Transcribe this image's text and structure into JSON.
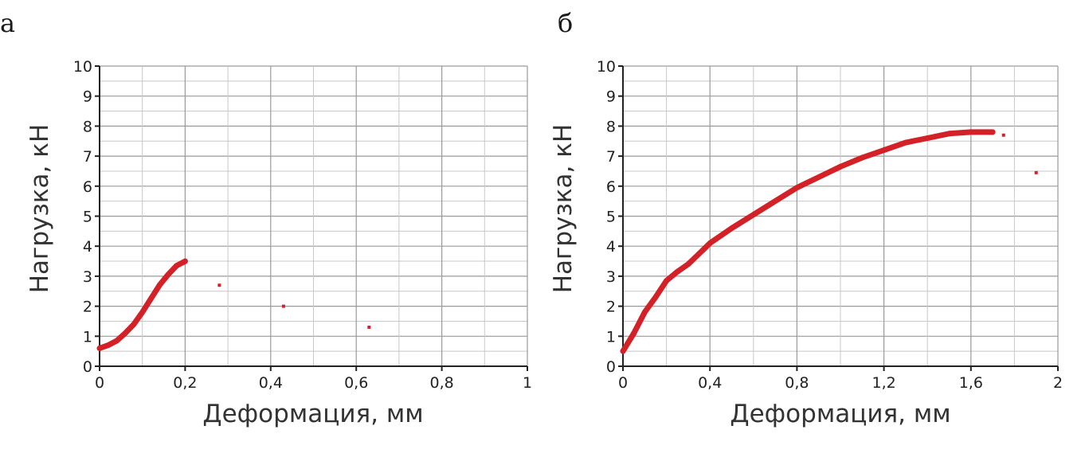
{
  "panels": [
    {
      "letter": "а"
    },
    {
      "letter": "б"
    }
  ],
  "chart_data": [
    {
      "type": "scatter",
      "xlabel": "Деформация, мм",
      "ylabel": "Нагрузка, кН",
      "xlim": [
        0,
        1
      ],
      "ylim": [
        0,
        10
      ],
      "x_ticks": [
        "0",
        "0,2",
        "0,4",
        "0,6",
        "0,8",
        "1"
      ],
      "y_ticks": [
        "0",
        "1",
        "2",
        "3",
        "4",
        "5",
        "6",
        "7",
        "8",
        "9",
        "10"
      ],
      "grid": true,
      "color": "#d42127",
      "series": [
        {
          "x": [
            0,
            0.02,
            0.04,
            0.06,
            0.08,
            0.1,
            0.12,
            0.14,
            0.16,
            0.18,
            0.2
          ],
          "y": [
            0.6,
            0.7,
            0.85,
            1.1,
            1.4,
            1.8,
            2.25,
            2.7,
            3.05,
            3.35,
            3.5
          ]
        }
      ],
      "isolated_points": {
        "x": [
          0.28,
          0.43,
          0.63
        ],
        "y": [
          2.7,
          2.0,
          1.3
        ]
      }
    },
    {
      "type": "scatter",
      "xlabel": "Деформация, мм",
      "ylabel": "Нагрузка, кН",
      "xlim": [
        0,
        2
      ],
      "ylim": [
        0,
        10
      ],
      "x_ticks": [
        "0",
        "0,4",
        "0,8",
        "1,2",
        "1,6",
        "2"
      ],
      "y_ticks": [
        "0",
        "1",
        "2",
        "3",
        "4",
        "5",
        "6",
        "7",
        "8",
        "9",
        "10"
      ],
      "grid": true,
      "color": "#d42127",
      "series": [
        {
          "x": [
            0,
            0.05,
            0.1,
            0.15,
            0.2,
            0.25,
            0.3,
            0.35,
            0.4,
            0.5,
            0.6,
            0.7,
            0.8,
            0.9,
            1.0,
            1.1,
            1.2,
            1.3,
            1.4,
            1.5,
            1.6,
            1.7
          ],
          "y": [
            0.5,
            1.1,
            1.8,
            2.3,
            2.85,
            3.15,
            3.4,
            3.75,
            4.1,
            4.6,
            5.05,
            5.5,
            5.95,
            6.3,
            6.65,
            6.95,
            7.2,
            7.45,
            7.6,
            7.75,
            7.8,
            7.8
          ]
        }
      ],
      "isolated_points": {
        "x": [
          1.75,
          1.9
        ],
        "y": [
          7.7,
          6.45
        ]
      }
    }
  ]
}
